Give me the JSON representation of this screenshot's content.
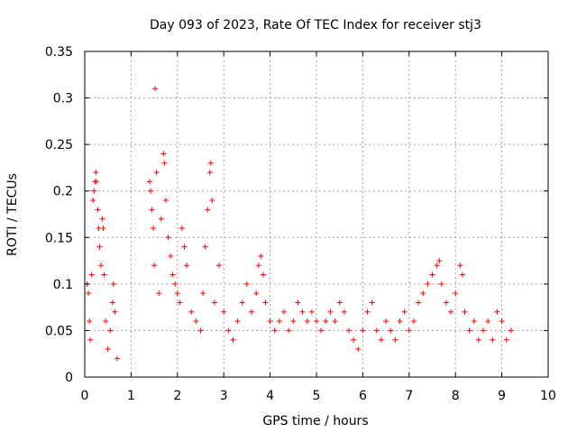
{
  "chart_data": {
    "type": "scatter",
    "title": "Day 093 of 2023, Rate Of TEC Index for receiver stj3",
    "xlabel": "GPS time / hours",
    "ylabel": "ROTI / TECUs",
    "xlim": [
      0,
      10
    ],
    "ylim": [
      0,
      0.35
    ],
    "x_ticks": [
      0,
      1,
      2,
      3,
      4,
      5,
      6,
      7,
      8,
      9,
      10
    ],
    "x_tick_labels": [
      "0",
      "1",
      "2",
      "3",
      "4",
      "5",
      "6",
      "7",
      "8",
      "9",
      "10"
    ],
    "y_ticks": [
      0,
      0.05,
      0.1,
      0.15,
      0.2,
      0.25,
      0.3,
      0.35
    ],
    "y_tick_labels": [
      "0",
      "0.05",
      "0.1",
      "0.15",
      "0.2",
      "0.25",
      "0.3",
      "0.35"
    ],
    "grid": true,
    "marker": "+",
    "color": "#ff0000",
    "series": [
      {
        "name": "ROTI",
        "points": [
          [
            0.05,
            0.1
          ],
          [
            0.08,
            0.09
          ],
          [
            0.1,
            0.06
          ],
          [
            0.12,
            0.04
          ],
          [
            0.15,
            0.11
          ],
          [
            0.18,
            0.19
          ],
          [
            0.2,
            0.2
          ],
          [
            0.22,
            0.21
          ],
          [
            0.24,
            0.22
          ],
          [
            0.25,
            0.21
          ],
          [
            0.28,
            0.18
          ],
          [
            0.3,
            0.16
          ],
          [
            0.32,
            0.14
          ],
          [
            0.35,
            0.12
          ],
          [
            0.38,
            0.17
          ],
          [
            0.4,
            0.16
          ],
          [
            0.42,
            0.11
          ],
          [
            0.45,
            0.06
          ],
          [
            0.5,
            0.03
          ],
          [
            0.55,
            0.05
          ],
          [
            0.6,
            0.08
          ],
          [
            0.62,
            0.1
          ],
          [
            0.65,
            0.07
          ],
          [
            0.7,
            0.02
          ],
          [
            1.4,
            0.21
          ],
          [
            1.42,
            0.2
          ],
          [
            1.45,
            0.18
          ],
          [
            1.48,
            0.16
          ],
          [
            1.5,
            0.12
          ],
          [
            1.52,
            0.31
          ],
          [
            1.55,
            0.22
          ],
          [
            1.6,
            0.09
          ],
          [
            1.65,
            0.17
          ],
          [
            1.7,
            0.24
          ],
          [
            1.72,
            0.23
          ],
          [
            1.75,
            0.19
          ],
          [
            1.8,
            0.15
          ],
          [
            1.85,
            0.13
          ],
          [
            1.9,
            0.11
          ],
          [
            1.95,
            0.1
          ],
          [
            2.0,
            0.09
          ],
          [
            2.05,
            0.08
          ],
          [
            2.1,
            0.16
          ],
          [
            2.15,
            0.14
          ],
          [
            2.2,
            0.12
          ],
          [
            2.3,
            0.07
          ],
          [
            2.4,
            0.06
          ],
          [
            2.5,
            0.05
          ],
          [
            2.55,
            0.09
          ],
          [
            2.6,
            0.14
          ],
          [
            2.65,
            0.18
          ],
          [
            2.7,
            0.22
          ],
          [
            2.72,
            0.23
          ],
          [
            2.75,
            0.19
          ],
          [
            2.8,
            0.08
          ],
          [
            2.9,
            0.12
          ],
          [
            3.0,
            0.07
          ],
          [
            3.1,
            0.05
          ],
          [
            3.2,
            0.04
          ],
          [
            3.3,
            0.06
          ],
          [
            3.4,
            0.08
          ],
          [
            3.5,
            0.1
          ],
          [
            3.6,
            0.07
          ],
          [
            3.7,
            0.09
          ],
          [
            3.75,
            0.12
          ],
          [
            3.8,
            0.13
          ],
          [
            3.85,
            0.11
          ],
          [
            3.9,
            0.08
          ],
          [
            4.0,
            0.06
          ],
          [
            4.1,
            0.05
          ],
          [
            4.2,
            0.06
          ],
          [
            4.3,
            0.07
          ],
          [
            4.4,
            0.05
          ],
          [
            4.5,
            0.06
          ],
          [
            4.6,
            0.08
          ],
          [
            4.7,
            0.07
          ],
          [
            4.8,
            0.06
          ],
          [
            4.9,
            0.07
          ],
          [
            5.0,
            0.06
          ],
          [
            5.1,
            0.05
          ],
          [
            5.2,
            0.06
          ],
          [
            5.3,
            0.07
          ],
          [
            5.4,
            0.06
          ],
          [
            5.5,
            0.08
          ],
          [
            5.6,
            0.07
          ],
          [
            5.7,
            0.05
          ],
          [
            5.8,
            0.04
          ],
          [
            5.9,
            0.03
          ],
          [
            6.0,
            0.05
          ],
          [
            6.1,
            0.07
          ],
          [
            6.2,
            0.08
          ],
          [
            6.3,
            0.05
          ],
          [
            6.4,
            0.04
          ],
          [
            6.5,
            0.06
          ],
          [
            6.6,
            0.05
          ],
          [
            6.7,
            0.04
          ],
          [
            6.8,
            0.06
          ],
          [
            6.9,
            0.07
          ],
          [
            7.0,
            0.05
          ],
          [
            7.1,
            0.06
          ],
          [
            7.2,
            0.08
          ],
          [
            7.3,
            0.09
          ],
          [
            7.4,
            0.1
          ],
          [
            7.5,
            0.11
          ],
          [
            7.6,
            0.12
          ],
          [
            7.65,
            0.125
          ],
          [
            7.7,
            0.1
          ],
          [
            7.8,
            0.08
          ],
          [
            7.9,
            0.07
          ],
          [
            8.0,
            0.09
          ],
          [
            8.1,
            0.12
          ],
          [
            8.15,
            0.11
          ],
          [
            8.2,
            0.07
          ],
          [
            8.3,
            0.05
          ],
          [
            8.4,
            0.06
          ],
          [
            8.5,
            0.04
          ],
          [
            8.6,
            0.05
          ],
          [
            8.7,
            0.06
          ],
          [
            8.8,
            0.04
          ],
          [
            8.9,
            0.07
          ],
          [
            9.0,
            0.06
          ],
          [
            9.1,
            0.04
          ],
          [
            9.2,
            0.05
          ]
        ]
      }
    ]
  }
}
